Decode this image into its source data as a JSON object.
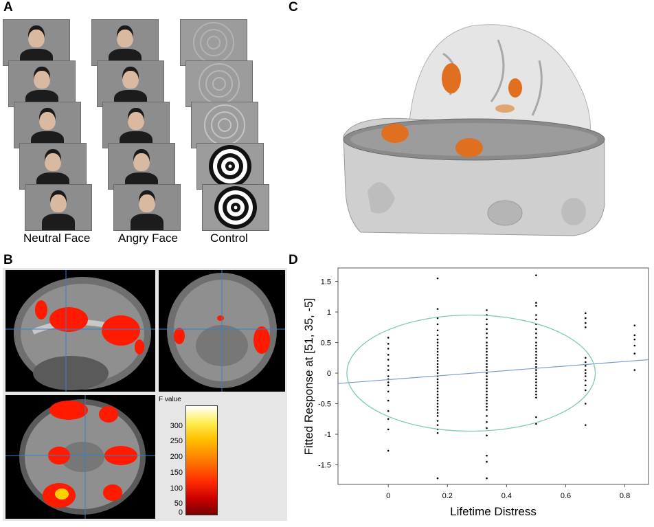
{
  "panels": {
    "a": "A",
    "b": "B",
    "c": "C",
    "d": "D"
  },
  "panel_a": {
    "captions": [
      "Neutral Face",
      "Angry Face",
      "Control"
    ]
  },
  "panel_b": {
    "colorbar_title": "F value",
    "colorbar_ticks": [
      "300",
      "250",
      "200",
      "150",
      "100",
      "50",
      "0"
    ]
  },
  "chart_data": {
    "type": "scatter",
    "xlabel": "Lifetime Distress",
    "ylabel": "Fitted Response at [51, 35, -5]",
    "xlim": [
      -0.17,
      0.88
    ],
    "ylim": [
      -1.82,
      1.72
    ],
    "x_ticks": [
      "0",
      "0.2",
      "0.4",
      "0.6",
      "0.8"
    ],
    "y_ticks": [
      "1.5",
      "1",
      "0.5",
      "0",
      "-0.5",
      "-1",
      "-1.5"
    ],
    "grid": false,
    "fit_line": {
      "x": [
        -0.17,
        0.88
      ],
      "y": [
        -0.17,
        0.22
      ],
      "color": "#7a9ccc"
    },
    "ellipse": {
      "center": [
        0.28,
        0.0
      ],
      "rx": 0.42,
      "ry": 0.95,
      "color": "#7cc9b8"
    },
    "point_color": "#000000",
    "points_by_x": [
      {
        "x": 0.0,
        "y": [
          0.58,
          0.48,
          0.4,
          0.3,
          0.22,
          0.12,
          0.05,
          -0.05,
          -0.1,
          -0.15,
          -0.2,
          -0.3,
          -0.45,
          -0.62,
          -0.75,
          -0.92,
          -1.27
        ]
      },
      {
        "x": 0.167,
        "y": [
          1.55,
          1.05,
          0.9,
          0.8,
          0.7,
          0.62,
          0.55,
          0.5,
          0.45,
          0.4,
          0.35,
          0.3,
          0.25,
          0.2,
          0.15,
          0.1,
          0.05,
          0.0,
          -0.05,
          -0.1,
          -0.15,
          -0.2,
          -0.25,
          -0.3,
          -0.35,
          -0.4,
          -0.45,
          -0.5,
          -0.55,
          -0.6,
          -0.65,
          -0.7,
          -0.78,
          -0.85,
          -0.92,
          -0.98,
          -1.72
        ]
      },
      {
        "x": 0.333,
        "y": [
          1.03,
          0.95,
          0.88,
          0.8,
          0.72,
          0.65,
          0.58,
          0.5,
          0.45,
          0.4,
          0.35,
          0.3,
          0.25,
          0.2,
          0.15,
          0.1,
          0.05,
          0.0,
          -0.05,
          -0.1,
          -0.15,
          -0.2,
          -0.25,
          -0.3,
          -0.35,
          -0.4,
          -0.45,
          -0.5,
          -0.55,
          -0.6,
          -0.7,
          -0.8,
          -0.9,
          -1.02,
          -1.35,
          -1.45,
          -1.72
        ]
      },
      {
        "x": 0.5,
        "y": [
          1.6,
          1.15,
          1.1,
          0.95,
          0.88,
          0.8,
          0.72,
          0.65,
          0.58,
          0.5,
          0.45,
          0.4,
          0.35,
          0.3,
          0.25,
          0.2,
          0.15,
          0.1,
          0.05,
          0.0,
          -0.05,
          -0.1,
          -0.15,
          -0.2,
          -0.25,
          -0.3,
          -0.35,
          -0.4,
          -0.72,
          -0.83
        ]
      },
      {
        "x": 0.667,
        "y": [
          0.98,
          0.9,
          0.82,
          0.75,
          0.25,
          0.18,
          0.12,
          0.05,
          0.0,
          -0.05,
          -0.12,
          -0.2,
          -0.28,
          -0.5,
          -0.85
        ]
      },
      {
        "x": 0.833,
        "y": [
          0.78,
          0.62,
          0.55,
          0.45,
          0.32,
          0.05
        ]
      }
    ]
  }
}
